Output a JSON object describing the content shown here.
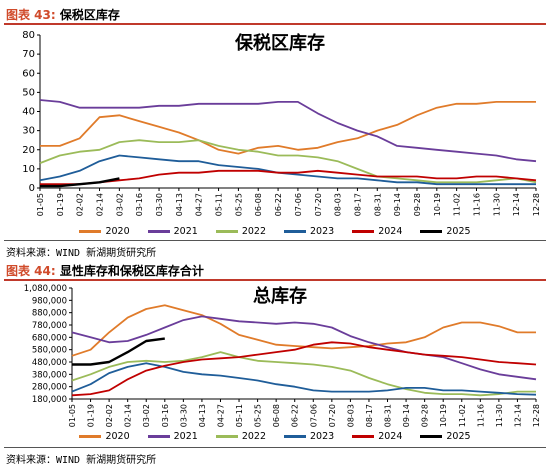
{
  "figures": [
    {
      "caption_prefix": "图表 43:",
      "caption_text": " 保税区库存",
      "source": "资料来源：WIND 新湖期货研究所"
    },
    {
      "caption_prefix": "图表 44:",
      "caption_text": " 显性库存和保税区库存合计",
      "source": "资料来源：WIND 新湖期货研究所"
    }
  ],
  "legend_labels": [
    "2020",
    "2021",
    "2022",
    "2023",
    "2024",
    "2025"
  ],
  "series_colors": [
    "#e07b2a",
    "#6a3d9a",
    "#9bbb59",
    "#1f5d99",
    "#c00000",
    "#000000"
  ],
  "chart_data": [
    {
      "type": "line",
      "title": "保税区库存",
      "x_ticks": [
        "01-05",
        "01-19",
        "02-02",
        "02-14",
        "03-02",
        "03-16",
        "03-30",
        "04-13",
        "04-27",
        "05-11",
        "05-25",
        "06-08",
        "06-22",
        "07-06",
        "07-20",
        "08-03",
        "08-17",
        "08-31",
        "09-14",
        "09-28",
        "10-19",
        "11-02",
        "11-16",
        "11-30",
        "12-14",
        "12-28"
      ],
      "ylim": [
        0,
        80
      ],
      "y_ticks": [
        0,
        10,
        20,
        30,
        40,
        50,
        60,
        70,
        80
      ],
      "grid": false,
      "legend": "bottom",
      "series": [
        {
          "name": "2020",
          "values": [
            22,
            22,
            26,
            37,
            38,
            35,
            32,
            29,
            25,
            20,
            18,
            21,
            22,
            20,
            21,
            24,
            26,
            30,
            33,
            38,
            42,
            44,
            44,
            45,
            45,
            45
          ]
        },
        {
          "name": "2021",
          "values": [
            46,
            45,
            42,
            42,
            42,
            42,
            43,
            43,
            44,
            44,
            44,
            44,
            45,
            45,
            39,
            34,
            30,
            27,
            22,
            21,
            20,
            19,
            18,
            17,
            15,
            14
          ]
        },
        {
          "name": "2022",
          "values": [
            13,
            17,
            19,
            20,
            24,
            25,
            24,
            24,
            25,
            22,
            20,
            19,
            17,
            17,
            16,
            14,
            10,
            6,
            5,
            4,
            3,
            3,
            3,
            4,
            5,
            3
          ]
        },
        {
          "name": "2023",
          "values": [
            4,
            6,
            9,
            14,
            17,
            16,
            15,
            14,
            14,
            12,
            11,
            10,
            8,
            7,
            6,
            5,
            5,
            4,
            3,
            3,
            2,
            2,
            2,
            2,
            2,
            2
          ]
        },
        {
          "name": "2024",
          "values": [
            2,
            2,
            2,
            3,
            4,
            5,
            7,
            8,
            8,
            9,
            9,
            9,
            8,
            8,
            9,
            8,
            7,
            6,
            6,
            6,
            5,
            5,
            6,
            6,
            5,
            4
          ]
        },
        {
          "name": "2025",
          "x_count": 5,
          "values": [
            1,
            1,
            2,
            3,
            5
          ]
        }
      ]
    },
    {
      "type": "line",
      "title": "总库存",
      "x_ticks": [
        "01-05",
        "01-19",
        "02-02",
        "02-14",
        "03-02",
        "03-16",
        "03-30",
        "04-13",
        "04-27",
        "05-11",
        "05-25",
        "06-08",
        "06-22",
        "07-06",
        "07-20",
        "08-03",
        "08-17",
        "08-31",
        "09-14",
        "09-28",
        "10-19",
        "11-02",
        "11-16",
        "11-30",
        "12-14",
        "12-28"
      ],
      "ylim": [
        180000,
        1080000
      ],
      "y_ticks": [
        180000,
        280000,
        380000,
        480000,
        580000,
        680000,
        780000,
        880000,
        980000,
        1080000
      ],
      "y_tick_labels": [
        "180,000",
        "280,000",
        "380,000",
        "480,000",
        "580,000",
        "680,000",
        "780,000",
        "880,000",
        "980,000",
        "1,080,000"
      ],
      "grid": false,
      "legend": "bottom",
      "series": [
        {
          "name": "2020",
          "values": [
            530000,
            580000,
            720000,
            840000,
            910000,
            940000,
            900000,
            860000,
            790000,
            700000,
            660000,
            620000,
            610000,
            600000,
            590000,
            600000,
            610000,
            630000,
            640000,
            680000,
            760000,
            800000,
            800000,
            770000,
            720000,
            720000
          ]
        },
        {
          "name": "2021",
          "values": [
            720000,
            680000,
            640000,
            650000,
            700000,
            760000,
            820000,
            850000,
            830000,
            810000,
            800000,
            790000,
            800000,
            790000,
            760000,
            690000,
            640000,
            600000,
            560000,
            540000,
            520000,
            470000,
            420000,
            380000,
            360000,
            340000
          ]
        },
        {
          "name": "2022",
          "values": [
            330000,
            380000,
            440000,
            480000,
            490000,
            480000,
            490000,
            520000,
            560000,
            520000,
            490000,
            480000,
            470000,
            460000,
            440000,
            410000,
            350000,
            300000,
            260000,
            230000,
            220000,
            220000,
            210000,
            220000,
            240000,
            240000
          ]
        },
        {
          "name": "2023",
          "values": [
            240000,
            300000,
            390000,
            440000,
            470000,
            440000,
            400000,
            380000,
            370000,
            350000,
            330000,
            300000,
            280000,
            250000,
            240000,
            240000,
            240000,
            250000,
            270000,
            270000,
            250000,
            250000,
            240000,
            230000,
            220000,
            215000
          ]
        },
        {
          "name": "2024",
          "values": [
            210000,
            220000,
            250000,
            340000,
            410000,
            450000,
            480000,
            500000,
            510000,
            520000,
            540000,
            560000,
            580000,
            620000,
            640000,
            630000,
            600000,
            580000,
            560000,
            540000,
            530000,
            520000,
            500000,
            480000,
            470000,
            460000
          ]
        },
        {
          "name": "2025",
          "x_count": 6,
          "values": [
            460000,
            460000,
            480000,
            560000,
            650000,
            670000
          ]
        }
      ]
    }
  ]
}
